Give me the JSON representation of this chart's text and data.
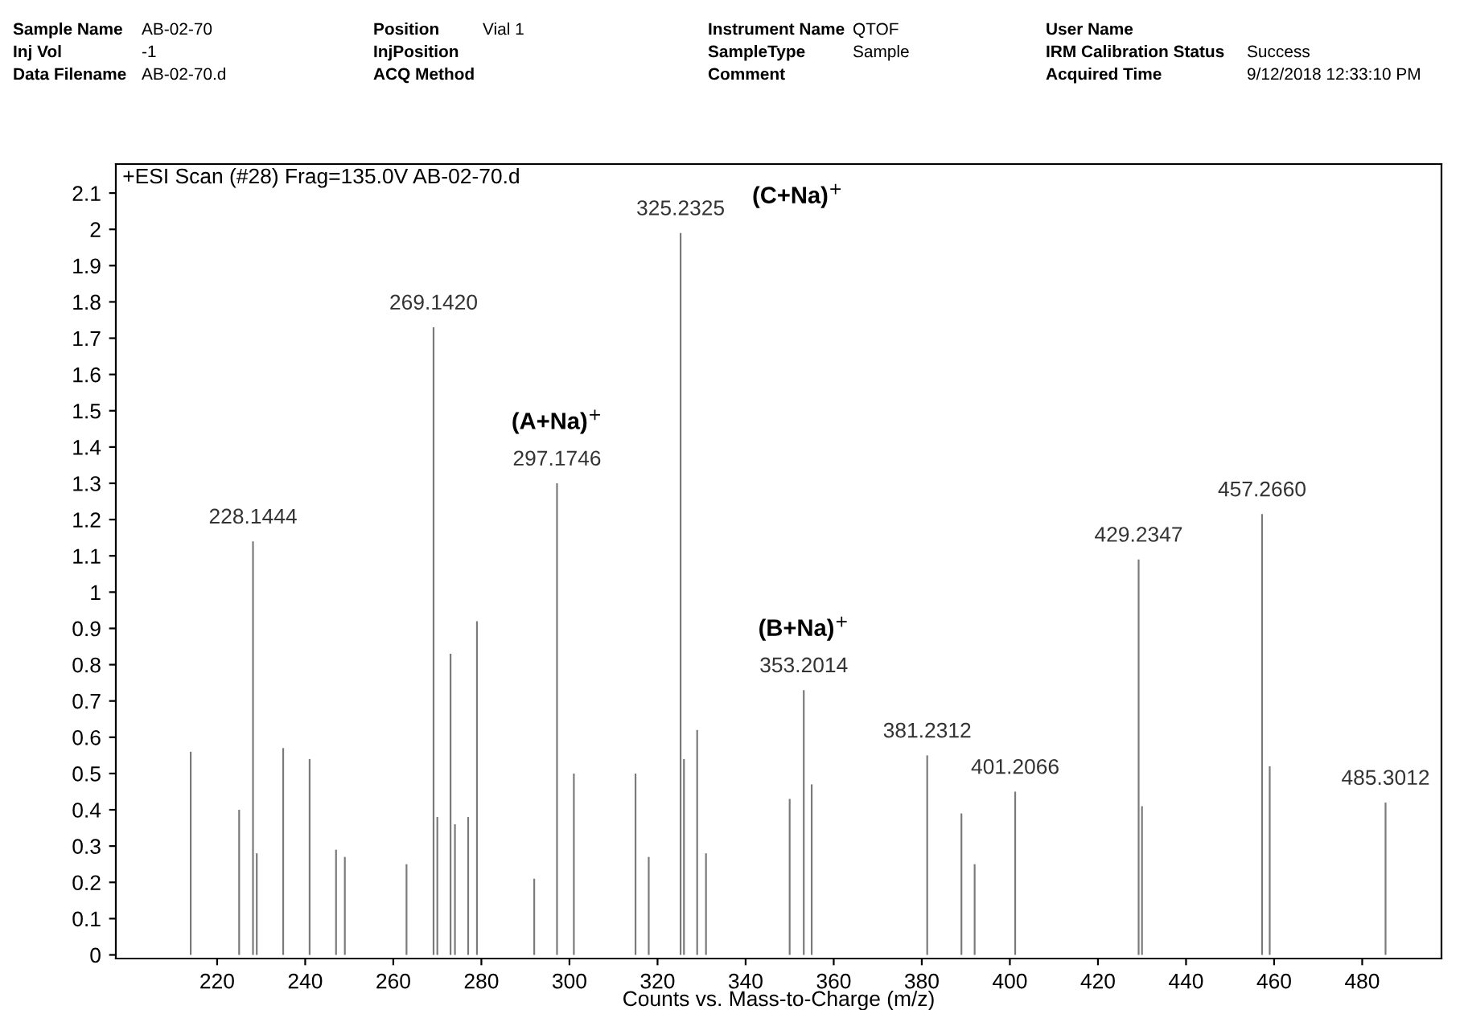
{
  "chart_data": {
    "type": "bar",
    "title": "+ESI Scan (#28) Frag=135.0V AB-02-70.d",
    "xlabel": "Counts vs. Mass-to-Charge (m/z)",
    "x": [
      214,
      225,
      228.1444,
      229,
      235,
      241,
      247,
      249,
      263,
      269.142,
      270,
      273,
      274,
      277,
      279,
      292,
      297.1746,
      301,
      315,
      318,
      325.2325,
      326,
      329,
      331,
      350,
      353.2014,
      355,
      381.2312,
      389,
      392,
      401.2066,
      429.2347,
      430,
      457.266,
      459,
      485.3012
    ],
    "values": [
      0.56,
      0.4,
      1.14,
      0.28,
      0.57,
      0.54,
      0.29,
      0.27,
      0.25,
      1.73,
      0.38,
      0.83,
      0.36,
      0.38,
      0.92,
      0.21,
      1.3,
      0.5,
      0.5,
      0.27,
      1.99,
      0.54,
      0.62,
      0.28,
      0.43,
      0.73,
      0.47,
      0.55,
      0.39,
      0.25,
      0.45,
      1.09,
      0.41,
      1.215,
      0.52,
      0.42
    ],
    "color": "#7a7a7a",
    "xlim": [
      197,
      498
    ],
    "xticks": [
      220,
      240,
      260,
      280,
      300,
      320,
      340,
      360,
      380,
      400,
      420,
      440,
      460,
      480
    ],
    "ylim": [
      -0.01,
      2.18
    ],
    "yticks": [
      0,
      0.1,
      0.2,
      0.3,
      0.4,
      0.5,
      0.6,
      0.7,
      0.8,
      0.9,
      1,
      1.1,
      1.2,
      1.3,
      1.4,
      1.5,
      1.6,
      1.7,
      1.8,
      1.9,
      2,
      2.1
    ],
    "grid": false,
    "annotations": [
      {
        "text": "228.1444",
        "x": 228.1444,
        "y": 1.14
      },
      {
        "text": "269.1420",
        "x": 269.142,
        "y": 1.73
      },
      {
        "text": "297.1746",
        "x": 297.1746,
        "y": 1.3
      },
      {
        "text": "325.2325",
        "x": 325.2325,
        "y": 1.99
      },
      {
        "text": "353.2014",
        "x": 353.2014,
        "y": 0.73
      },
      {
        "text": "381.2312",
        "x": 381.2312,
        "y": 0.55
      },
      {
        "text": "401.2066",
        "x": 401.2066,
        "y": 0.45
      },
      {
        "text": "429.2347",
        "x": 429.2347,
        "y": 1.09
      },
      {
        "text": "457.2660",
        "x": 457.266,
        "y": 1.215
      },
      {
        "text": "485.3012",
        "x": 485.3012,
        "y": 0.42
      },
      {
        "text": "(A+Na)$^{+}$",
        "x": 297.1746,
        "y": 1.3
      },
      {
        "text": "(B+Na)$^{+}$",
        "x": 353.2014,
        "y": 0.73
      },
      "(C+Na)$^{+}$",
      "Sample Name",
      "AB-02-70",
      "Position",
      "Vial 1",
      "Instrument Name",
      "QTOF",
      "User Name",
      "Inj Vol",
      "-1",
      "InjPosition",
      "SampleType",
      "Sample",
      "IRM Calibration Status",
      "Success",
      "Data Filename",
      "AB-02-70.d",
      "ACQ Method",
      "Comment",
      "Acquired Time",
      "9/12/2018 12:33:10 PM"
    ]
  }
}
